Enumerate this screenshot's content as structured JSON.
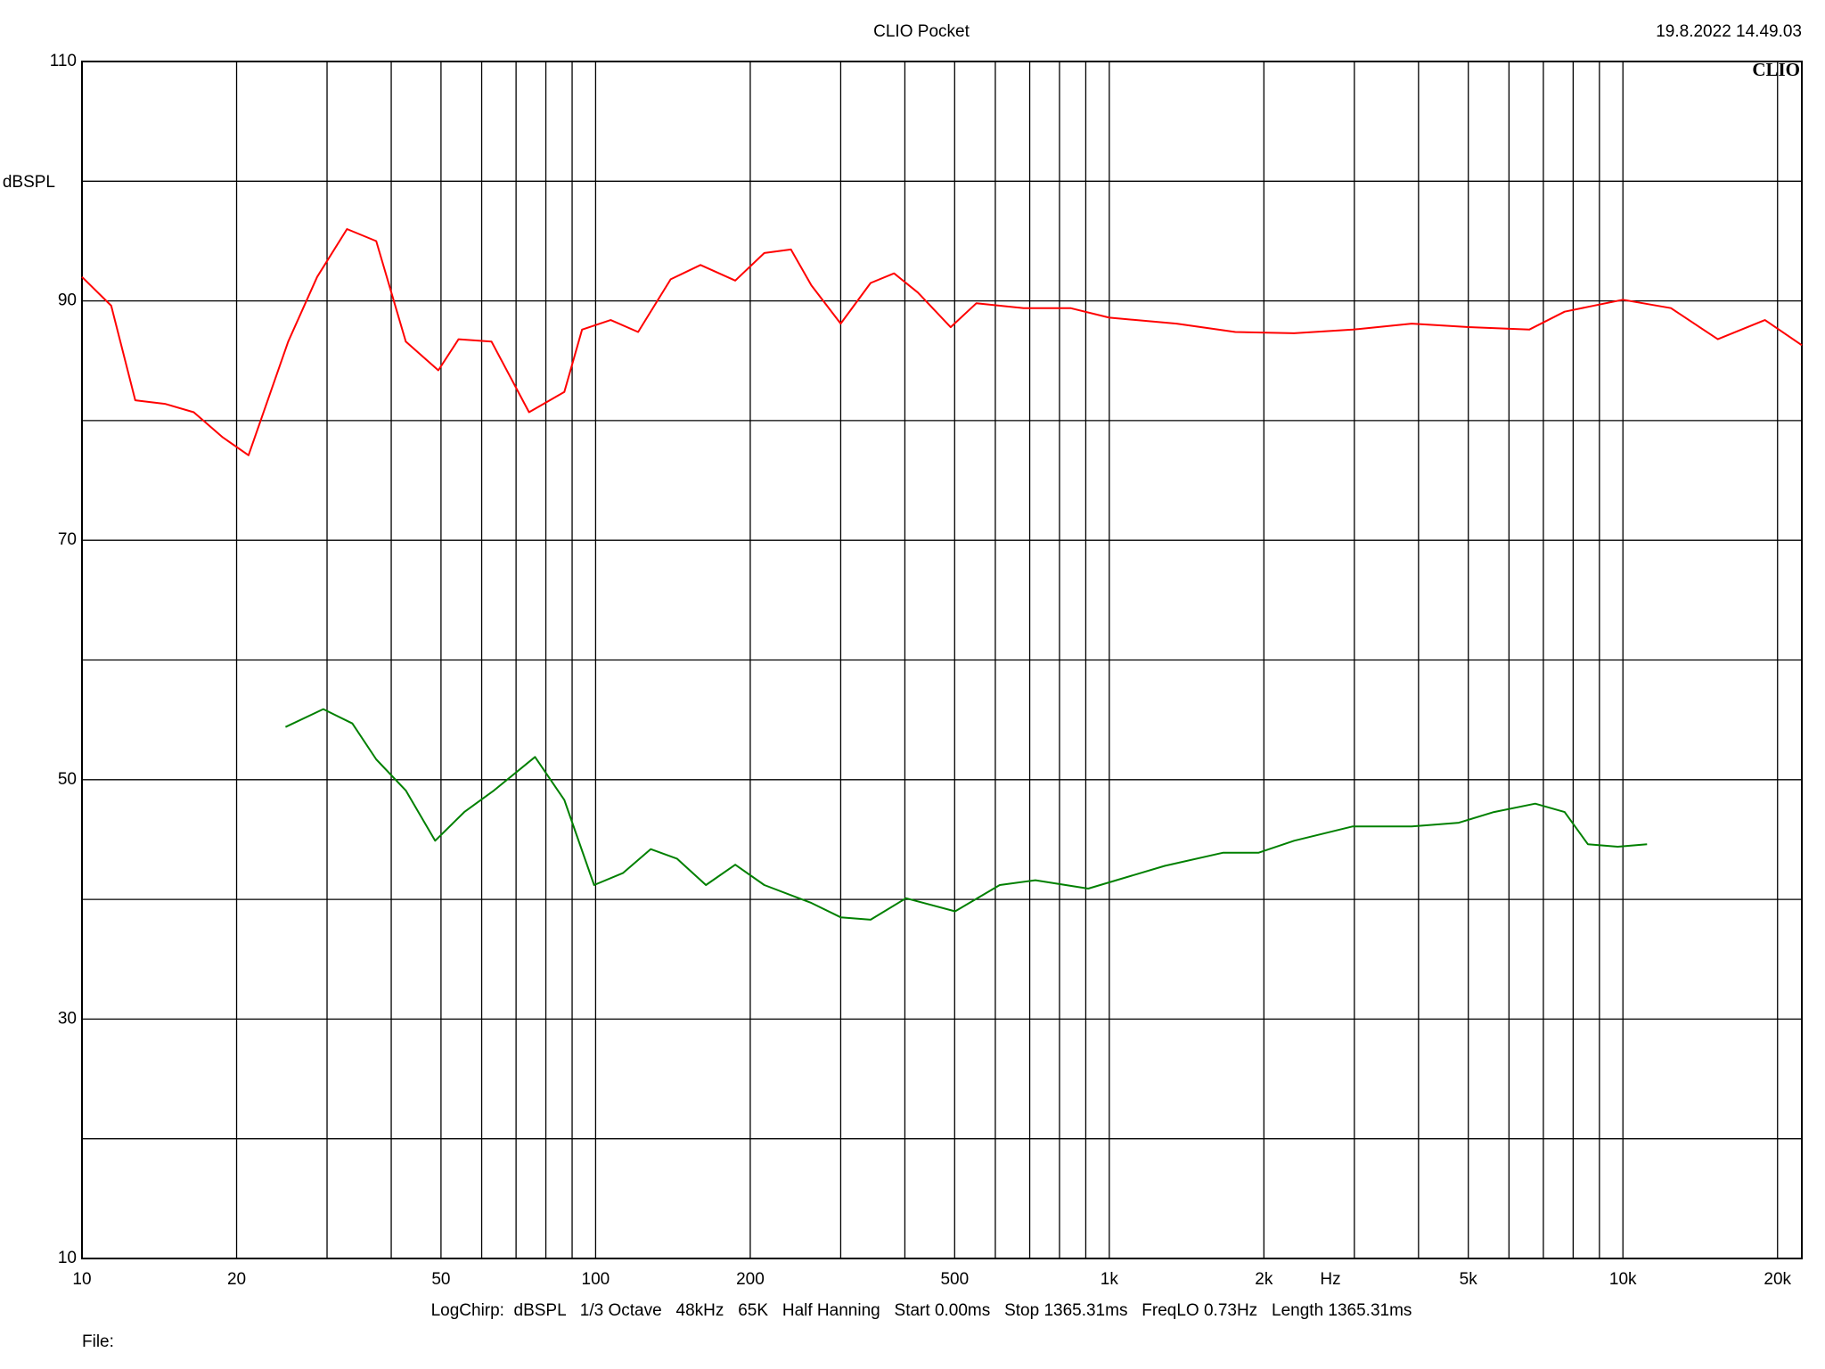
{
  "chart_data": {
    "type": "line",
    "title": "CLIO Pocket",
    "timestamp": "19.8.2022 14.49.03",
    "logo": "CLIO",
    "y_label": "dBSPL",
    "x_label": "Hz",
    "footer": "LogChirp:  dBSPL   1/3 Octave   48kHz   65K   Half Hanning   Start 0.00ms   Stop 1365.31ms   FreqLO 0.73Hz   Length 1365.31ms",
    "file_label": "File:",
    "xscale": "log",
    "xlim": [
      10,
      22300
    ],
    "ylim": [
      10,
      110
    ],
    "xticks": [
      10,
      20,
      50,
      100,
      200,
      500,
      {
        "value": 1000,
        "label": "1k"
      },
      {
        "value": 2000,
        "label": "2k"
      },
      {
        "value": 5000,
        "label": "5k"
      },
      {
        "value": 10000,
        "label": "10k"
      },
      {
        "value": 20000,
        "label": "20k"
      }
    ],
    "xminor": [
      30,
      40,
      60,
      70,
      80,
      90,
      300,
      400,
      600,
      700,
      800,
      900,
      3000,
      4000,
      6000,
      7000,
      8000,
      9000
    ],
    "yticks": [
      10,
      30,
      50,
      70,
      90,
      110
    ],
    "yminor": [
      20,
      40,
      60,
      80,
      100
    ],
    "grid": true,
    "series": [
      {
        "color": "#ff0000",
        "x": [
          10,
          11.4,
          12.7,
          14.5,
          16.5,
          18.8,
          21.1,
          25.2,
          28.7,
          32.8,
          37.4,
          42.7,
          49.4,
          54.1,
          62.7,
          74.2,
          86.9,
          94.1,
          107,
          121,
          140,
          160,
          187,
          213,
          240,
          263,
          300,
          343,
          381,
          424,
          491,
          551,
          681,
          840,
          1000,
          1352,
          1760,
          2290,
          2980,
          3880,
          5050,
          6570,
          7700,
          10000,
          12400,
          15300,
          18900,
          22300
        ],
        "values": [
          92.0,
          89.6,
          81.7,
          81.4,
          80.7,
          78.6,
          77.1,
          86.6,
          92.0,
          96.0,
          95.0,
          86.6,
          84.2,
          86.8,
          86.6,
          80.7,
          82.4,
          87.6,
          88.4,
          87.4,
          91.8,
          93.0,
          91.7,
          94.0,
          94.3,
          91.3,
          88.1,
          91.5,
          92.3,
          90.7,
          87.8,
          89.8,
          89.4,
          89.4,
          88.6,
          88.1,
          87.4,
          87.3,
          87.6,
          88.1,
          87.8,
          87.6,
          89.1,
          90.1,
          89.4,
          86.8,
          88.4,
          86.3
        ]
      },
      {
        "color": "#008000",
        "x": [
          24.9,
          29.5,
          33.6,
          37.4,
          42.7,
          48.7,
          55.5,
          63.4,
          76.2,
          86.9,
          99.3,
          113,
          128,
          144,
          164,
          187,
          213,
          263,
          300,
          343,
          402,
          501,
          612,
          718,
          910,
          1282,
          1667,
          1954,
          2290,
          2980,
          3880,
          4790,
          5610,
          6750,
          7700,
          8550,
          9770,
          11140
        ],
        "values": [
          54.4,
          55.9,
          54.7,
          51.7,
          49.1,
          44.9,
          47.3,
          49.1,
          51.9,
          48.3,
          41.2,
          42.2,
          44.2,
          43.4,
          41.2,
          42.9,
          41.2,
          39.7,
          38.5,
          38.3,
          40.1,
          39.0,
          41.2,
          41.6,
          40.9,
          42.8,
          43.9,
          43.9,
          44.9,
          46.1,
          46.1,
          46.4,
          47.3,
          48.0,
          47.3,
          44.6,
          44.4,
          44.6
        ]
      }
    ]
  }
}
